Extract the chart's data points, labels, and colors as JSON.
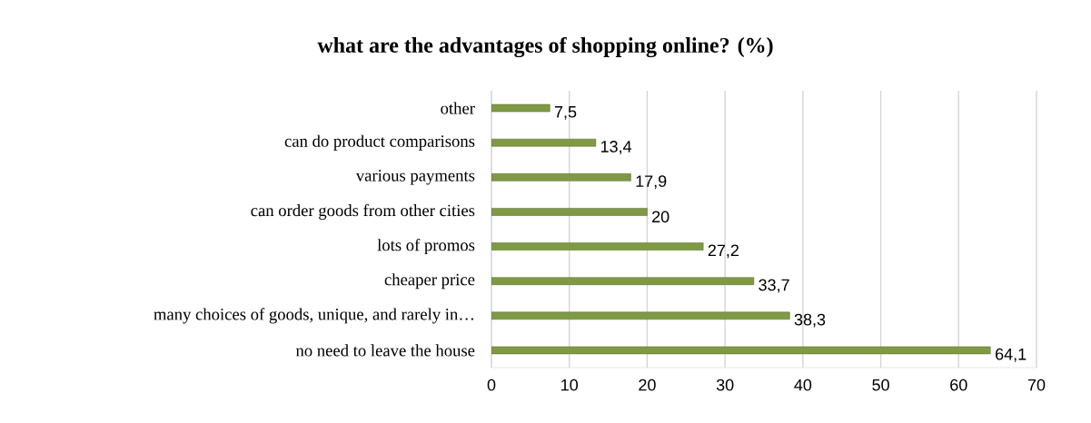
{
  "chart_data": {
    "type": "bar",
    "orientation": "horizontal",
    "title": "what are the advantages of shopping online? (%)",
    "categories": [
      "other",
      "can do product comparisons",
      "various payments",
      "can order goods from other cities",
      "lots of promos",
      "cheaper price",
      "many choices of goods, unique, and rarely in…",
      "no need to leave the house"
    ],
    "values": [
      7.5,
      13.4,
      17.9,
      20,
      27.2,
      33.7,
      38.3,
      64.1
    ],
    "value_labels": [
      "7,5",
      "13,4",
      "17,9",
      "20",
      "27,2",
      "33,7",
      "38,3",
      "64,1"
    ],
    "color": "#7f9a45",
    "xlim": [
      0,
      70
    ],
    "xticks": [
      0,
      10,
      20,
      30,
      40,
      50,
      60,
      70
    ],
    "grid": "x"
  }
}
